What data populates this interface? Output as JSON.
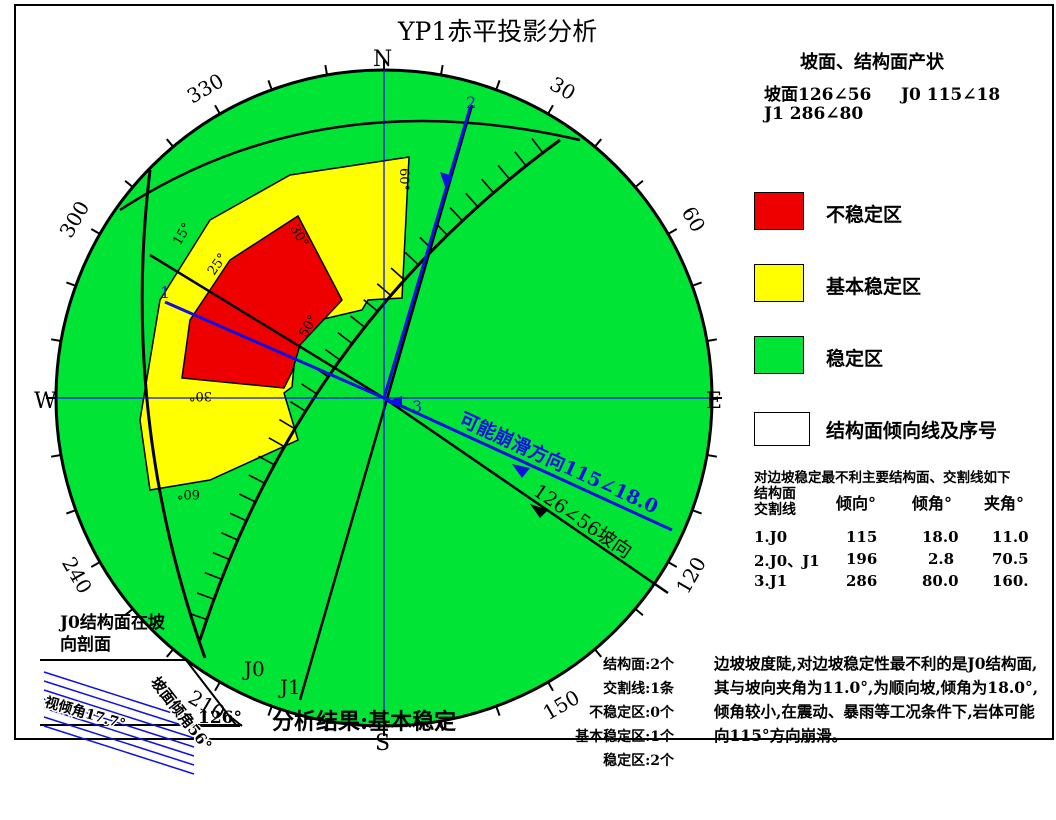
{
  "title": "YP1赤平投影分析",
  "compass": {
    "north": "N",
    "south": "S",
    "west": "W",
    "east": "E"
  },
  "azimuth_labels": [
    "30",
    "60",
    "120",
    "150",
    "210",
    "240",
    "300",
    "330"
  ],
  "dip_labels": {
    "c15": "15°",
    "c25": "25°",
    "c30a": "30°",
    "c30b": "30°",
    "c50": "50°",
    "c60a": "60°",
    "c60b": "60°",
    "c30c": "30°"
  },
  "plane_labels": {
    "j0": "J0",
    "j1": "J1"
  },
  "dip_line_numbers": {
    "n1": "1",
    "n2": "2",
    "n3": "3"
  },
  "direction_labels": {
    "slide": "可能崩滑方向115∠18.0",
    "slope": "126∠56坡向"
  },
  "attitudes": {
    "heading": "坡面、结构面产状",
    "line1": "坡面126∠56     J0 115∠18",
    "line2": "J1 286∠80"
  },
  "legend": [
    {
      "label": "不稳定区",
      "color": "#ee0000"
    },
    {
      "label": "基本稳定区",
      "color": "#ffff00"
    },
    {
      "label": "稳定区",
      "color": "#00e436"
    }
  ],
  "legend_arrow": {
    "number": "2",
    "label": "结构面倾向线及序号",
    "color": "#1010e0"
  },
  "table": {
    "title": "对边坡稳定最不利主要结构面、交割线如下",
    "header_line1": "结构面",
    "header_line2": "交割线",
    "col_dip_dir": "倾向°",
    "col_dip": "倾角°",
    "col_angle": "夹角°",
    "rows": [
      {
        "name": "1.J0",
        "dip_dir": "115",
        "dip": "18.0",
        "angle": "11.0"
      },
      {
        "name": "2.J0、J1",
        "dip_dir": "196",
        "dip": "2.8",
        "angle": "70.5"
      },
      {
        "name": "3.J1",
        "dip_dir": "286",
        "dip": "80.0",
        "angle": "160."
      }
    ]
  },
  "stats": [
    "结构面:2个",
    "交割线:1条",
    "不稳定区:0个",
    "基本稳定区:1个",
    "稳定区:2个"
  ],
  "result": "分析结果:基本稳定",
  "conclusion": "边坡坡度陡,对边坡稳定性最不利的是J0结构面,其与坡向夹角为11.0°,为顺向坡,倾角为18.0°,倾角较小,在震动、暴雨等工况条件下,岩体可能向115°方向崩滑。",
  "section": {
    "title": "J0结构面在坡向剖面",
    "slope_label": "坡面倾角56°",
    "apparent_dip_label": "视倾角17.7°",
    "direction": "126°"
  },
  "colors": {
    "stable": "#00e436",
    "basic_stable": "#ffff00",
    "unstable": "#ee0000",
    "line_blue": "#1010e0"
  }
}
